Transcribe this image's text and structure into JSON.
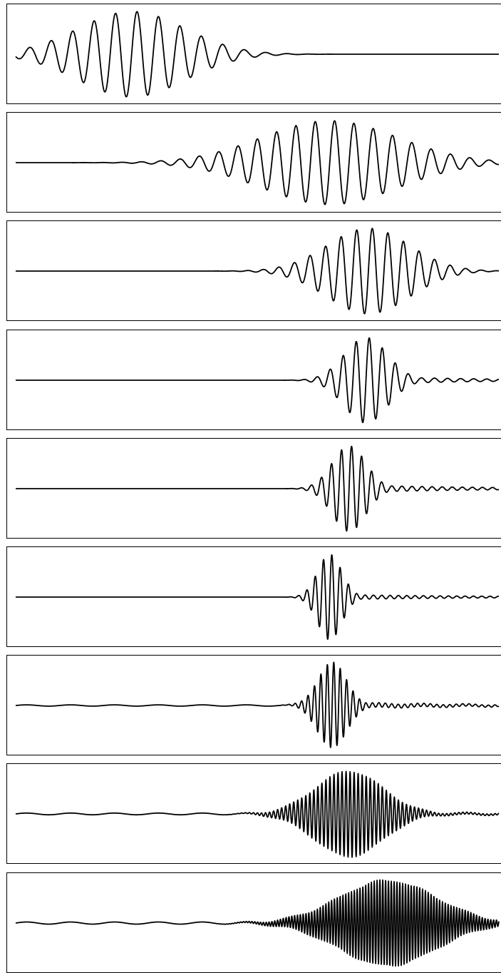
{
  "figure": {
    "stroke_color": "#000000",
    "background": "#ffffff"
  },
  "chart_data": [
    {
      "type": "line",
      "title": "",
      "xlabel": "",
      "ylabel": "",
      "xlim": [
        0,
        1
      ],
      "ylim": [
        -1.05,
        1.05
      ],
      "grid": false,
      "axes_ticks": false,
      "series": [
        {
          "values_model": "gabor_wavelet",
          "center": 0.24,
          "width": 0.11,
          "tail_decay": 0.11,
          "cycles_per_unit": 22.5,
          "peak_amplitude": 1.0
        }
      ]
    },
    {
      "type": "line",
      "title": "",
      "xlabel": "",
      "ylabel": "",
      "xlim": [
        0,
        1
      ],
      "ylim": [
        -1.05,
        1.05
      ],
      "grid": false,
      "axes_ticks": false,
      "series": [
        {
          "values_model": "gabor_wavelet",
          "center": 0.65,
          "width": 0.14,
          "tail_decay": 0.14,
          "cycles_per_unit": 25.0,
          "peak_amplitude": 0.98
        }
      ]
    },
    {
      "type": "line",
      "title": "",
      "xlabel": "",
      "ylabel": "",
      "xlim": [
        0,
        1
      ],
      "ylim": [
        -1.05,
        1.05
      ],
      "grid": false,
      "axes_ticks": false,
      "series": [
        {
          "values_model": "gabor_wavelet",
          "center": 0.73,
          "width": 0.085,
          "tail_decay": 0.16,
          "cycles_per_unit": 31.0,
          "peak_amplitude": 1.0
        }
      ]
    },
    {
      "type": "line",
      "title": "",
      "xlabel": "",
      "ylabel": "",
      "xlim": [
        0,
        1
      ],
      "ylim": [
        -1.05,
        1.05
      ],
      "grid": false,
      "axes_ticks": false,
      "series": [
        {
          "values_model": "gabor_wavelet",
          "center": 0.725,
          "width": 0.045,
          "tail_decay": 0.2,
          "cycles_per_unit": 37.0,
          "peak_amplitude": 1.0,
          "tail_amplitude": 0.1
        }
      ]
    },
    {
      "type": "line",
      "title": "",
      "xlabel": "",
      "ylabel": "",
      "xlim": [
        0,
        1
      ],
      "ylim": [
        -1.05,
        1.05
      ],
      "grid": false,
      "axes_ticks": false,
      "series": [
        {
          "values_model": "gabor_wavelet",
          "center": 0.69,
          "width": 0.035,
          "tail_decay": 0.25,
          "cycles_per_unit": 48.0,
          "peak_amplitude": 1.0,
          "tail_amplitude": 0.09
        }
      ]
    },
    {
      "type": "line",
      "title": "",
      "xlabel": "",
      "ylabel": "",
      "xlim": [
        0,
        1
      ],
      "ylim": [
        -1.05,
        1.05
      ],
      "grid": false,
      "axes_ticks": false,
      "series": [
        {
          "values_model": "gabor_wavelet",
          "center": 0.65,
          "width": 0.025,
          "tail_decay": 0.3,
          "cycles_per_unit": 58.0,
          "peak_amplitude": 1.0,
          "tail_amplitude": 0.06
        }
      ]
    },
    {
      "type": "line",
      "title": "",
      "xlabel": "",
      "ylabel": "",
      "xlim": [
        0,
        1
      ],
      "ylim": [
        -1.05,
        1.05
      ],
      "grid": false,
      "axes_ticks": false,
      "series": [
        {
          "values_model": "gabor_wavelet",
          "center": 0.655,
          "width": 0.03,
          "tail_decay": 0.3,
          "cycles_per_unit": 75.0,
          "peak_amplitude": 1.0,
          "tail_amplitude": 0.07,
          "baseline_ripple": 0.015
        }
      ]
    },
    {
      "type": "line",
      "title": "",
      "xlabel": "",
      "ylabel": "",
      "xlim": [
        0,
        1
      ],
      "ylim": [
        -1.05,
        1.05
      ],
      "grid": false,
      "axes_ticks": false,
      "series": [
        {
          "values_model": "gabor_wavelet",
          "center": 0.69,
          "width": 0.07,
          "tail_decay": 0.25,
          "cycles_per_unit": 120.0,
          "peak_amplitude": 1.0,
          "tail_amplitude": 0.06,
          "baseline_ripple": 0.02
        }
      ]
    },
    {
      "type": "line",
      "title": "",
      "xlabel": "",
      "ylabel": "",
      "xlim": [
        0,
        1
      ],
      "ylim": [
        -1.05,
        1.05
      ],
      "grid": false,
      "axes_ticks": false,
      "series": [
        {
          "values_model": "gabor_wavelet",
          "center": 0.77,
          "width": 0.1,
          "tail_decay": 0.2,
          "cycles_per_unit": 170.0,
          "peak_amplitude": 1.0,
          "tail_amplitude": 0.05,
          "baseline_ripple": 0.025
        }
      ]
    }
  ]
}
